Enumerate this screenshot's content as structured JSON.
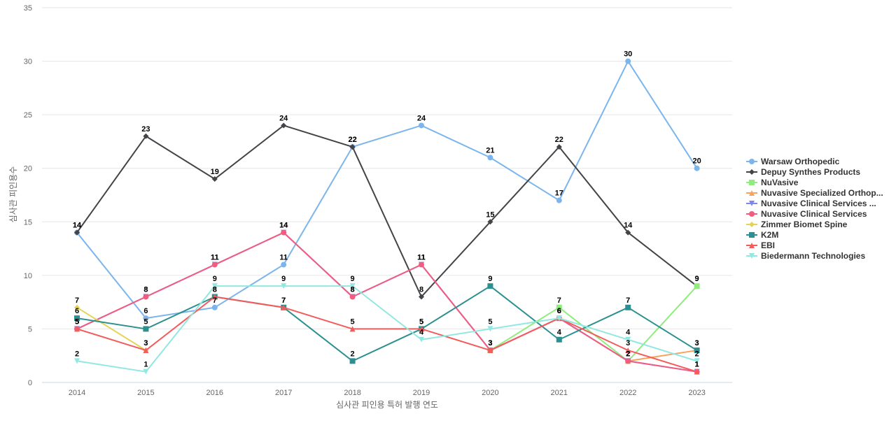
{
  "chart_data": {
    "type": "line",
    "title": "",
    "xlabel": "심사관 피인용 특허 발행 연도",
    "ylabel": "심사관 피인용수",
    "categories": [
      "2014",
      "2015",
      "2016",
      "2017",
      "2018",
      "2019",
      "2020",
      "2021",
      "2022",
      "2023"
    ],
    "ylim": [
      0,
      35
    ],
    "yticks": [
      0,
      5,
      10,
      15,
      20,
      25,
      30,
      35
    ],
    "grid": true,
    "legend_position": "right",
    "series": [
      {
        "name": "Warsaw Orthopedic",
        "color": "#7cb5ec",
        "marker": "circle",
        "values": [
          14,
          6,
          7,
          11,
          22,
          24,
          21,
          17,
          30,
          20
        ]
      },
      {
        "name": "Depuy Synthes Products",
        "color": "#434348",
        "marker": "diamond",
        "values": [
          14,
          23,
          19,
          24,
          22,
          8,
          15,
          22,
          14,
          9
        ]
      },
      {
        "name": "NuVasive",
        "color": "#90ed7d",
        "marker": "square",
        "values": [
          null,
          null,
          null,
          null,
          null,
          null,
          3,
          7,
          2,
          9
        ]
      },
      {
        "name": "Nuvasive Specialized Orthop...",
        "color": "#f7a35c",
        "marker": "triangle",
        "values": [
          null,
          null,
          null,
          null,
          null,
          null,
          null,
          null,
          2,
          3
        ]
      },
      {
        "name": "Nuvasive Clinical Services ...",
        "color": "#8085e9",
        "marker": "triangle-down",
        "values": [
          5,
          8,
          11,
          14,
          8,
          11,
          3,
          6,
          2,
          1
        ]
      },
      {
        "name": "Nuvasive Clinical Services",
        "color": "#f15c80",
        "marker": "circle",
        "values": [
          5,
          8,
          11,
          14,
          8,
          11,
          3,
          6,
          2,
          1
        ]
      },
      {
        "name": "Zimmer Biomet Spine",
        "color": "#e4d354",
        "marker": "diamond",
        "values": [
          7,
          3,
          null,
          null,
          null,
          null,
          null,
          null,
          null,
          null
        ]
      },
      {
        "name": "K2M",
        "color": "#2b908f",
        "marker": "square",
        "values": [
          6,
          5,
          8,
          7,
          2,
          5,
          9,
          4,
          7,
          3
        ]
      },
      {
        "name": "EBI",
        "color": "#f45b5b",
        "marker": "triangle",
        "values": [
          5,
          3,
          8,
          7,
          5,
          5,
          3,
          6,
          3,
          1
        ]
      },
      {
        "name": "Biedermann Technologies",
        "color": "#91e8e1",
        "marker": "triangle-down",
        "values": [
          2,
          1,
          9,
          9,
          9,
          4,
          5,
          6,
          4,
          2
        ]
      }
    ]
  }
}
